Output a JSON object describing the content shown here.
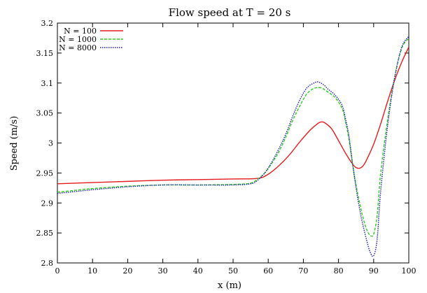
{
  "chart_data": {
    "type": "line",
    "title": "Flow speed at T = 20 s",
    "xlabel": "x (m)",
    "ylabel": "Speed  (m/s)",
    "xlim": [
      0,
      100
    ],
    "ylim": [
      2.8,
      3.2
    ],
    "xticks": [
      0,
      10,
      20,
      30,
      40,
      50,
      60,
      70,
      80,
      90,
      100
    ],
    "yticks": [
      2.8,
      2.85,
      2.9,
      2.95,
      3.0,
      3.05,
      3.1,
      3.15,
      3.2
    ],
    "xtick_labels": [
      "0",
      "10",
      "20",
      "30",
      "40",
      "50",
      "60",
      "70",
      "80",
      "90",
      "100"
    ],
    "ytick_labels": [
      "2.8",
      "2.85",
      "2.9",
      "2.95",
      "3",
      "3.05",
      "3.1",
      "3.15",
      "3.2"
    ],
    "grid": false,
    "legend_position": "top-left",
    "series": [
      {
        "name": "N = 100",
        "color": "#e41a1c",
        "dash": "solid",
        "x": [
          0,
          10,
          20,
          30,
          40,
          50,
          57,
          60,
          63,
          66,
          69,
          72,
          74,
          75,
          76,
          78,
          80,
          82,
          84,
          85,
          86,
          87,
          88,
          90,
          92,
          94,
          96,
          98,
          100
        ],
        "y": [
          2.932,
          2.934,
          2.936,
          2.938,
          2.939,
          2.94,
          2.941,
          2.948,
          2.962,
          2.98,
          3.002,
          3.022,
          3.032,
          3.035,
          3.034,
          3.024,
          3.004,
          2.983,
          2.965,
          2.959,
          2.958,
          2.962,
          2.972,
          2.998,
          3.032,
          3.07,
          3.105,
          3.135,
          3.16
        ]
      },
      {
        "name": "N = 1000",
        "color": "#2ecc20",
        "dash": "dashed",
        "x": [
          0,
          5,
          10,
          20,
          30,
          40,
          50,
          55,
          57,
          59,
          61,
          63,
          65,
          67,
          69,
          71,
          73,
          75,
          77,
          79,
          81,
          82,
          83,
          84,
          85,
          86,
          87,
          88,
          89,
          90,
          91,
          92,
          94,
          96,
          98,
          100
        ],
        "y": [
          2.918,
          2.921,
          2.924,
          2.928,
          2.93,
          2.93,
          2.931,
          2.933,
          2.94,
          2.95,
          2.966,
          2.985,
          3.01,
          3.038,
          3.062,
          3.082,
          3.091,
          3.092,
          3.085,
          3.076,
          3.058,
          3.035,
          3.005,
          2.965,
          2.93,
          2.9,
          2.875,
          2.856,
          2.846,
          2.848,
          2.88,
          2.95,
          3.04,
          3.11,
          3.158,
          3.175
        ]
      },
      {
        "name": "N = 8000",
        "color": "#1a1ab8",
        "dash": "dotted",
        "x": [
          0,
          5,
          10,
          20,
          30,
          40,
          50,
          55,
          57,
          59,
          61,
          63,
          65,
          67,
          69,
          71,
          73,
          74,
          75,
          76,
          77,
          79,
          81,
          82,
          83,
          84,
          85,
          86,
          87,
          88,
          89,
          90,
          91,
          92,
          94,
          96,
          98,
          100
        ],
        "y": [
          2.916,
          2.919,
          2.922,
          2.927,
          2.93,
          2.93,
          2.93,
          2.932,
          2.938,
          2.95,
          2.968,
          2.99,
          3.015,
          3.045,
          3.072,
          3.092,
          3.1,
          3.102,
          3.1,
          3.096,
          3.09,
          3.08,
          3.063,
          3.04,
          3.01,
          2.965,
          2.925,
          2.89,
          2.862,
          2.838,
          2.818,
          2.812,
          2.84,
          2.92,
          3.03,
          3.11,
          3.16,
          3.178
        ]
      }
    ]
  }
}
